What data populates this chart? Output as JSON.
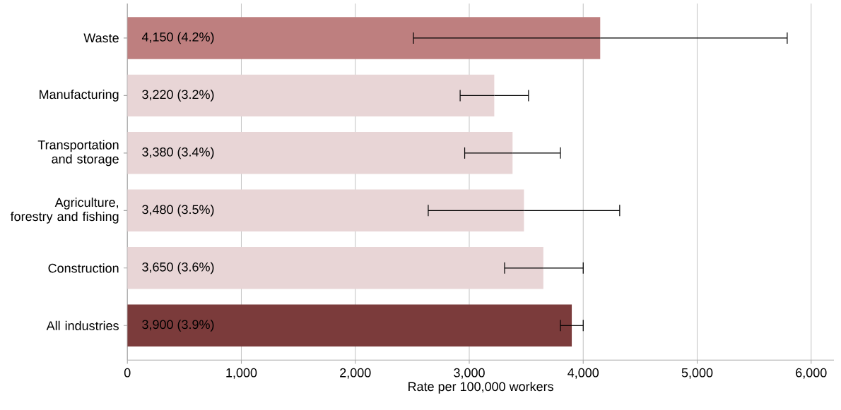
{
  "chart_data": {
    "type": "bar",
    "orientation": "horizontal",
    "xlabel": "Rate per 100,000 workers",
    "categories": [
      "Waste",
      "Manufacturing",
      "Transportation and storage",
      "Agriculture, forestry and fishing",
      "Construction",
      "All industries"
    ],
    "values": [
      4150,
      3220,
      3380,
      3480,
      3650,
      3900
    ],
    "colors": [
      "#be7f7f",
      "#e8d5d6",
      "#e8d5d6",
      "#e8d5d6",
      "#e8d5d6",
      "#7b3b3b"
    ],
    "errors": [
      [
        2510,
        5790
      ],
      [
        2920,
        3520
      ],
      [
        2960,
        3800
      ],
      [
        2640,
        4320
      ],
      [
        3310,
        4000
      ],
      [
        3800,
        4000
      ]
    ],
    "value_labels": [
      "4,150 (4.2%)",
      "3,220 (3.2%)",
      "3,380 (3.4%)",
      "3,480 (3.5%)",
      "3,650 (3.6%)",
      "3,900 (3.9%)"
    ],
    "xlim": [
      0,
      6200
    ],
    "xticks": [
      0,
      {
        "value": 1000,
        "label": "1,000"
      },
      {
        "value": 2000,
        "label": "2,000"
      },
      {
        "value": 3000,
        "label": "3,000"
      },
      {
        "value": 4000,
        "label": "4,000"
      },
      {
        "value": 5000,
        "label": "5,000"
      },
      {
        "value": 6000,
        "label": "6,000"
      }
    ],
    "grid": "x"
  }
}
